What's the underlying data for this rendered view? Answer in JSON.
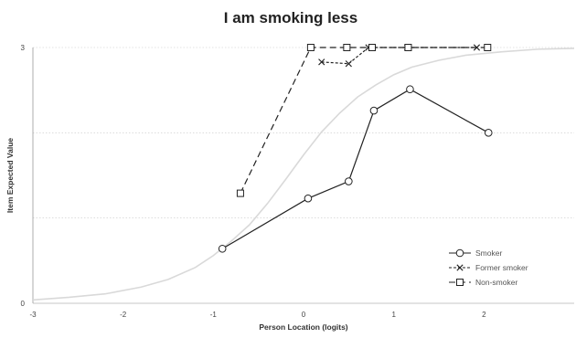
{
  "chart_data": {
    "type": "line",
    "title": "I am smoking less",
    "xlabel": "Person Location (logits)",
    "ylabel": "Item Expected Value",
    "xlim": [
      -3,
      3
    ],
    "ylim": [
      0,
      3
    ],
    "x_ticks": [
      -3,
      -2,
      -1,
      0,
      1,
      2
    ],
    "y_ticks": [
      0,
      3
    ],
    "y_gridlines": [
      1,
      2,
      3
    ],
    "grid": true,
    "legend_position": "bottom-right",
    "expected_curve": {
      "color": "#d9d9d9",
      "x": [
        -3.0,
        -2.6,
        -2.2,
        -1.8,
        -1.5,
        -1.2,
        -1.0,
        -0.8,
        -0.6,
        -0.4,
        -0.2,
        0.0,
        0.2,
        0.4,
        0.6,
        0.8,
        1.0,
        1.2,
        1.5,
        1.8,
        2.2,
        2.6,
        3.0
      ],
      "y": [
        0.04,
        0.07,
        0.11,
        0.19,
        0.28,
        0.42,
        0.56,
        0.73,
        0.92,
        1.17,
        1.45,
        1.74,
        2.01,
        2.23,
        2.42,
        2.56,
        2.68,
        2.77,
        2.85,
        2.91,
        2.95,
        2.98,
        2.99
      ]
    },
    "series": [
      {
        "name": "Smoker",
        "marker": "circle",
        "dash": "solid",
        "color": "#222222",
        "x": [
          -0.9,
          0.05,
          0.5,
          0.78,
          1.18,
          2.05
        ],
        "y": [
          0.64,
          1.23,
          1.43,
          2.26,
          2.51,
          2.0
        ]
      },
      {
        "name": "Former smoker",
        "marker": "cross",
        "dash": "short",
        "color": "#222222",
        "x": [
          0.2,
          0.5,
          0.72,
          1.15,
          1.92
        ],
        "y": [
          2.83,
          2.81,
          3.0,
          3.0,
          3.0
        ]
      },
      {
        "name": "Non-smoker",
        "marker": "square",
        "dash": "long",
        "color": "#222222",
        "x": [
          -0.7,
          0.08,
          0.48,
          0.76,
          1.16,
          2.04
        ],
        "y": [
          1.29,
          3.0,
          3.0,
          3.0,
          3.0,
          3.0
        ]
      }
    ]
  }
}
